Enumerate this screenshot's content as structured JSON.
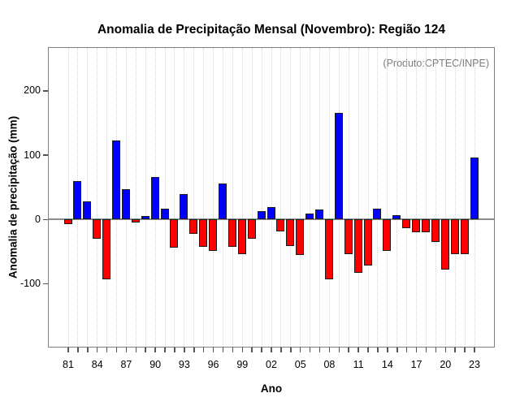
{
  "chart_data": {
    "type": "bar",
    "title": "Anomalia de Precipitação Mensal (Novembro): Região 124",
    "annotation": "(Produto:CPTEC/INPE)",
    "xlabel": "Ano",
    "ylabel": "Anomalia de precipitação (mm)",
    "categories": [
      1981,
      1982,
      1983,
      1984,
      1985,
      1986,
      1987,
      1988,
      1989,
      1990,
      1991,
      1992,
      1993,
      1994,
      1995,
      1996,
      1997,
      1998,
      1999,
      2000,
      2001,
      2002,
      2003,
      2004,
      2005,
      2006,
      2007,
      2008,
      2009,
      2010,
      2011,
      2012,
      2013,
      2014,
      2015,
      2016,
      2017,
      2018,
      2019,
      2020,
      2021,
      2022,
      2023
    ],
    "values": [
      -8,
      59,
      27,
      -30,
      -93,
      122,
      46,
      -5,
      5,
      65,
      16,
      -44,
      39,
      -23,
      -43,
      -49,
      55,
      -43,
      -54,
      -31,
      12,
      19,
      -19,
      -42,
      -56,
      9,
      15,
      -94,
      165,
      -55,
      -84,
      -72,
      16,
      -49,
      6,
      -14,
      -20,
      -21,
      -35,
      -79,
      -55,
      -54,
      96
    ],
    "xtick_labels": [
      "81",
      "84",
      "87",
      "90",
      "93",
      "96",
      "99",
      "02",
      "05",
      "08",
      "11",
      "14",
      "17",
      "20",
      "23"
    ],
    "xtick_label_every": 3,
    "yticks": [
      {
        "value": -100,
        "label": "-100"
      },
      {
        "value": 0,
        "label": "0"
      },
      {
        "value": 100,
        "label": "100"
      },
      {
        "value": 200,
        "label": "200"
      }
    ],
    "ylim": [
      -197,
      266
    ],
    "grid": {
      "vertical_dotted": true,
      "horizontal": false
    },
    "legend": null,
    "colors": {
      "positive": "#0000ff",
      "negative": "#ff0000",
      "annotation": "#7d7d7d",
      "axis_box": "#7f7f7f",
      "zero_line": "#8c8c8c"
    }
  }
}
